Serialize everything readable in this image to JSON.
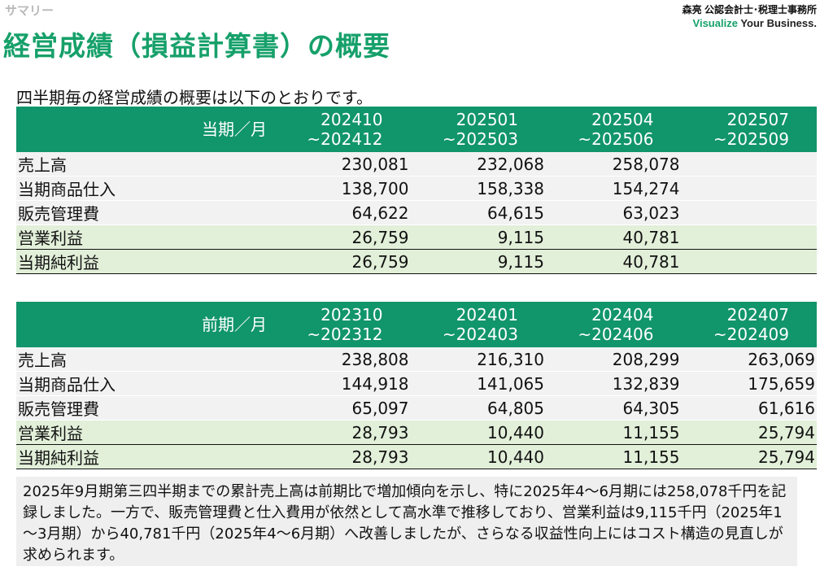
{
  "header": {
    "kicker": "サマリー",
    "title": "経営成績（損益計算書）の概要",
    "logo_line1": "森亮 公認会計士･税理士事務所",
    "logo_accent": "Visualize",
    "logo_rest": " Your Business."
  },
  "intro": "四半期毎の経営成績の概要は以下のとおりです。",
  "current": {
    "period_label": "当期／月",
    "columns": [
      {
        "from": "202410",
        "to": "~202412"
      },
      {
        "from": "202501",
        "to": "~202503"
      },
      {
        "from": "202504",
        "to": "~202506"
      },
      {
        "from": "202507",
        "to": "~202509"
      }
    ],
    "rows": [
      {
        "label": "売上高",
        "values": [
          "230,081",
          "232,068",
          "258,078",
          ""
        ]
      },
      {
        "label": "当期商品仕入",
        "values": [
          "138,700",
          "158,338",
          "154,274",
          ""
        ]
      },
      {
        "label": "販売管理費",
        "values": [
          "64,622",
          "64,615",
          "63,023",
          ""
        ]
      },
      {
        "label": "営業利益",
        "values": [
          "26,759",
          "9,115",
          "40,781",
          ""
        ]
      },
      {
        "label": "当期純利益",
        "values": [
          "26,759",
          "9,115",
          "40,781",
          ""
        ]
      }
    ]
  },
  "previous": {
    "period_label": "前期／月",
    "columns": [
      {
        "from": "202310",
        "to": "~202312"
      },
      {
        "from": "202401",
        "to": "~202403"
      },
      {
        "from": "202404",
        "to": "~202406"
      },
      {
        "from": "202407",
        "to": "~202409"
      }
    ],
    "rows": [
      {
        "label": "売上高",
        "values": [
          "238,808",
          "216,310",
          "208,299",
          "263,069"
        ]
      },
      {
        "label": "当期商品仕入",
        "values": [
          "144,918",
          "141,065",
          "132,839",
          "175,659"
        ]
      },
      {
        "label": "販売管理費",
        "values": [
          "65,097",
          "64,805",
          "64,305",
          "61,616"
        ]
      },
      {
        "label": "営業利益",
        "values": [
          "28,793",
          "10,440",
          "11,155",
          "25,794"
        ]
      },
      {
        "label": "当期純利益",
        "values": [
          "28,793",
          "10,440",
          "11,155",
          "25,794"
        ]
      }
    ]
  },
  "note": "2025年9月期第三四半期までの累計売上高は前期比で増加傾向を示し、特に2025年4～6月期には258,078千円を記録しました。一方で、販売管理費と仕入費用が依然として高水準で推移しており、営業利益は9,115千円（2025年1～3月期）から40,781千円（2025年4～6月期）へ改善しましたが、さらなる収益性向上にはコスト構造の見直しが求められます。"
}
